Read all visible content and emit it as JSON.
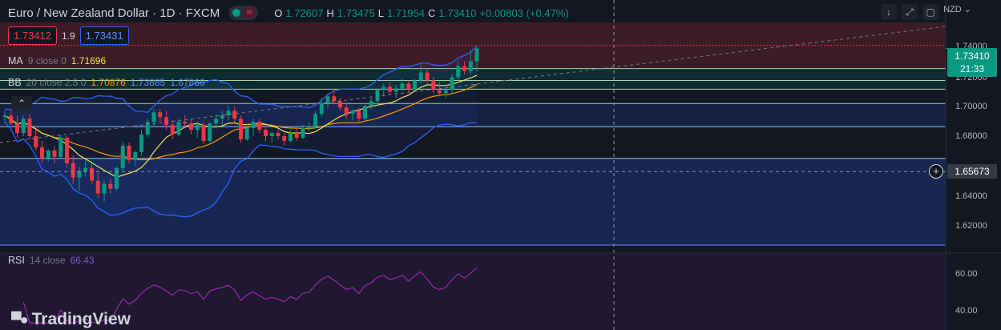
{
  "header": {
    "symbol": "Euro / New Zealand Dollar · 1D · FXCM",
    "ohlc": [
      {
        "k": "O",
        "v": "1.72607"
      },
      {
        "k": "H",
        "v": "1.73475"
      },
      {
        "k": "L",
        "v": "1.71954"
      },
      {
        "k": "C",
        "v": "1.73410"
      }
    ],
    "change": "+0.00803 (+0.47%)"
  },
  "trade": {
    "sell": "1.73412",
    "spread": "1.9",
    "buy": "1.73431"
  },
  "legends": {
    "ma": {
      "name": "MA",
      "params": "9 close 0",
      "value": "1.71696"
    },
    "bb": {
      "name": "BB",
      "params": "20 close 2.5 0",
      "basis": "1.70876",
      "upper": "1.73885",
      "lower": "1.67866"
    },
    "rsi": {
      "name": "RSI",
      "params": "14 close",
      "value": "66.43"
    }
  },
  "axis": {
    "currency": "NZD",
    "ticks": [
      "1.74000",
      "1.72000",
      "1.70000",
      "1.68000",
      "1.64000",
      "1.62000"
    ],
    "rsi_ticks": [
      "60.00",
      "40.00"
    ],
    "last_price": "1.73410",
    "countdown": "21:33",
    "crosshair_price": "1.65673"
  },
  "logo": "TradingView",
  "colors": {
    "up": "#089981",
    "down": "#f23645",
    "ma": "#f7e24a",
    "bb_basis": "#ff9800",
    "bb_band": "#2962ff",
    "rsi": "#9c27b0"
  },
  "chart_data": {
    "type": "candlestick",
    "title": "Euro / New Zealand Dollar · 1D · FXCM",
    "ylim": [
      1.6085,
      1.7505
    ],
    "zones": [
      {
        "from": 1.7215,
        "to": 1.7505,
        "color": "red"
      },
      {
        "from": 1.7085,
        "to": 1.7215,
        "color": "green"
      },
      {
        "from": 1.685,
        "to": 1.6995,
        "color": "blue"
      },
      {
        "from": 1.6105,
        "to": 1.665,
        "color": "navy"
      }
    ],
    "levels": [
      1.736,
      1.7215,
      1.714,
      1.7085,
      1.6995,
      1.685,
      1.665,
      1.6105
    ],
    "candles": [
      [
        1.691,
        1.695,
        1.687,
        1.692
      ],
      [
        1.692,
        1.696,
        1.686,
        1.687
      ],
      [
        1.687,
        1.692,
        1.678,
        1.681
      ],
      [
        1.681,
        1.692,
        1.679,
        1.69
      ],
      [
        1.69,
        1.693,
        1.677,
        1.679
      ],
      [
        1.679,
        1.683,
        1.67,
        1.672
      ],
      [
        1.672,
        1.676,
        1.662,
        1.665
      ],
      [
        1.665,
        1.671,
        1.663,
        1.67
      ],
      [
        1.67,
        1.673,
        1.662,
        1.666
      ],
      [
        1.666,
        1.68,
        1.665,
        1.678
      ],
      [
        1.678,
        1.679,
        1.659,
        1.662
      ],
      [
        1.662,
        1.667,
        1.649,
        1.653
      ],
      [
        1.653,
        1.66,
        1.645,
        1.657
      ],
      [
        1.657,
        1.664,
        1.654,
        1.659
      ],
      [
        1.659,
        1.662,
        1.649,
        1.651
      ],
      [
        1.651,
        1.656,
        1.64,
        1.643
      ],
      [
        1.643,
        1.651,
        1.638,
        1.649
      ],
      [
        1.649,
        1.652,
        1.643,
        1.646
      ],
      [
        1.646,
        1.66,
        1.645,
        1.659
      ],
      [
        1.659,
        1.675,
        1.657,
        1.673
      ],
      [
        1.673,
        1.675,
        1.662,
        1.664
      ],
      [
        1.664,
        1.67,
        1.66,
        1.669
      ],
      [
        1.669,
        1.683,
        1.667,
        1.68
      ],
      [
        1.68,
        1.69,
        1.678,
        1.688
      ],
      [
        1.688,
        1.696,
        1.685,
        1.694
      ],
      [
        1.694,
        1.696,
        1.688,
        1.691
      ],
      [
        1.691,
        1.695,
        1.683,
        1.686
      ],
      [
        1.686,
        1.689,
        1.677,
        1.68
      ],
      [
        1.68,
        1.69,
        1.679,
        1.688
      ],
      [
        1.688,
        1.692,
        1.685,
        1.687
      ],
      [
        1.687,
        1.69,
        1.68,
        1.683
      ],
      [
        1.683,
        1.688,
        1.678,
        1.686
      ],
      [
        1.686,
        1.688,
        1.674,
        1.676
      ],
      [
        1.676,
        1.688,
        1.674,
        1.687
      ],
      [
        1.687,
        1.693,
        1.684,
        1.69
      ],
      [
        1.69,
        1.695,
        1.686,
        1.692
      ],
      [
        1.692,
        1.698,
        1.689,
        1.695
      ],
      [
        1.695,
        1.698,
        1.688,
        1.69
      ],
      [
        1.69,
        1.692,
        1.675,
        1.677
      ],
      [
        1.677,
        1.687,
        1.676,
        1.684
      ],
      [
        1.684,
        1.69,
        1.679,
        1.688
      ],
      [
        1.688,
        1.69,
        1.681,
        1.683
      ],
      [
        1.683,
        1.685,
        1.676,
        1.679
      ],
      [
        1.679,
        1.682,
        1.675,
        1.681
      ],
      [
        1.681,
        1.683,
        1.677,
        1.679
      ],
      [
        1.679,
        1.681,
        1.673,
        1.676
      ],
      [
        1.676,
        1.683,
        1.675,
        1.681
      ],
      [
        1.681,
        1.684,
        1.676,
        1.678
      ],
      [
        1.678,
        1.686,
        1.677,
        1.684
      ],
      [
        1.684,
        1.688,
        1.682,
        1.685
      ],
      [
        1.685,
        1.695,
        1.684,
        1.693
      ],
      [
        1.693,
        1.703,
        1.691,
        1.7
      ],
      [
        1.7,
        1.706,
        1.696,
        1.704
      ],
      [
        1.704,
        1.708,
        1.699,
        1.701
      ],
      [
        1.701,
        1.703,
        1.695,
        1.697
      ],
      [
        1.697,
        1.7,
        1.69,
        1.693
      ],
      [
        1.693,
        1.696,
        1.689,
        1.695
      ],
      [
        1.695,
        1.697,
        1.688,
        1.69
      ],
      [
        1.69,
        1.699,
        1.689,
        1.698
      ],
      [
        1.698,
        1.703,
        1.696,
        1.701
      ],
      [
        1.701,
        1.709,
        1.699,
        1.708
      ],
      [
        1.708,
        1.712,
        1.704,
        1.71
      ],
      [
        1.71,
        1.713,
        1.705,
        1.707
      ],
      [
        1.707,
        1.711,
        1.703,
        1.709
      ],
      [
        1.709,
        1.715,
        1.707,
        1.712
      ],
      [
        1.712,
        1.714,
        1.707,
        1.708
      ],
      [
        1.708,
        1.715,
        1.707,
        1.714
      ],
      [
        1.714,
        1.724,
        1.712,
        1.719
      ],
      [
        1.719,
        1.721,
        1.712,
        1.714
      ],
      [
        1.714,
        1.716,
        1.706,
        1.708
      ],
      [
        1.708,
        1.713,
        1.704,
        1.706
      ],
      [
        1.706,
        1.71,
        1.703,
        1.708
      ],
      [
        1.708,
        1.718,
        1.706,
        1.716
      ],
      [
        1.716,
        1.726,
        1.714,
        1.723
      ],
      [
        1.723,
        1.726,
        1.718,
        1.72
      ],
      [
        1.72,
        1.733,
        1.718,
        1.7261
      ],
      [
        1.7261,
        1.7348,
        1.7195,
        1.7341
      ]
    ]
  }
}
